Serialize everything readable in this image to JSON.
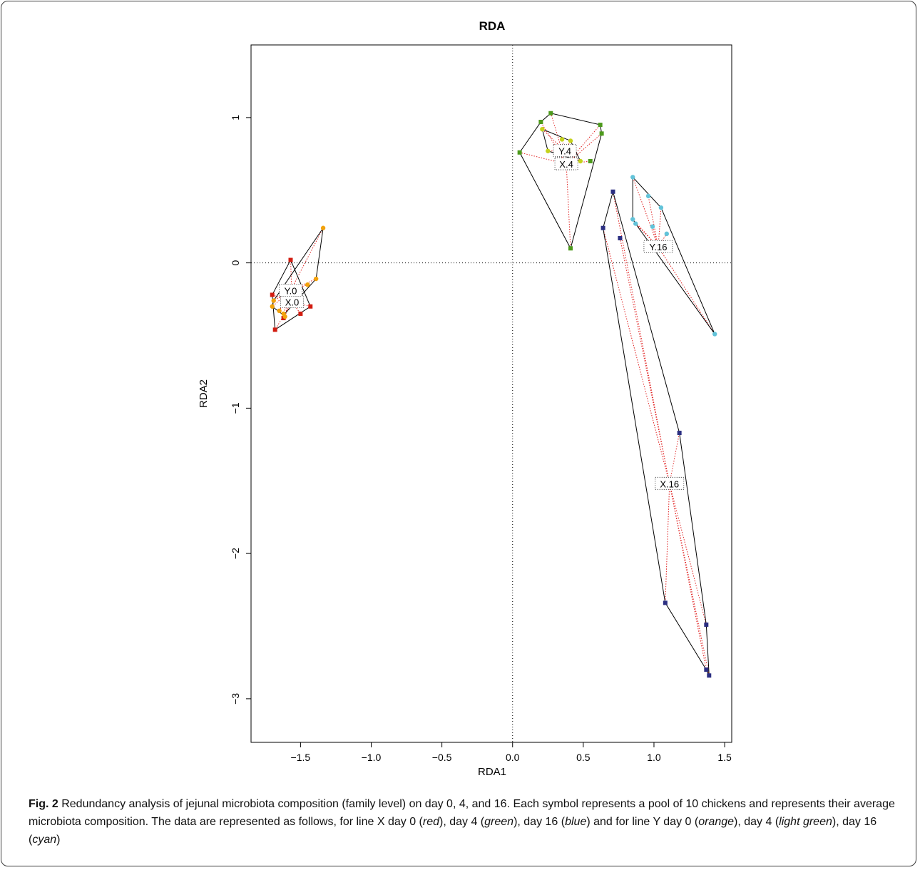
{
  "chart_data": {
    "type": "scatter",
    "title": "RDA",
    "xlabel": "RDA1",
    "ylabel": "RDA2",
    "xlim": [
      -1.85,
      1.55
    ],
    "ylim": [
      -3.3,
      1.5
    ],
    "xticks": [
      -1.5,
      -1.0,
      -0.5,
      0.0,
      0.5,
      1.0,
      1.5
    ],
    "xtick_labels": [
      "−1.5",
      "−1.0",
      "−0.5",
      "0.0",
      "0.5",
      "1.0",
      "1.5"
    ],
    "yticks": [
      -3,
      -2,
      -1,
      0,
      1
    ],
    "ytick_labels": [
      "−3",
      "−2",
      "−1",
      "0",
      "1"
    ],
    "reference_lines": {
      "x": 0,
      "y": 0
    },
    "groups": [
      {
        "label": "X.0",
        "color": "#d21c10",
        "marker": "square",
        "centroid": [
          -1.56,
          -0.27
        ],
        "points": [
          [
            -1.57,
            0.02
          ],
          [
            -1.7,
            -0.22
          ],
          [
            -1.68,
            -0.46
          ],
          [
            -1.62,
            -0.38
          ],
          [
            -1.5,
            -0.35
          ],
          [
            -1.43,
            -0.3
          ]
        ],
        "hull": [
          [
            -1.57,
            0.02
          ],
          [
            -1.7,
            -0.22
          ],
          [
            -1.68,
            -0.46
          ],
          [
            -1.43,
            -0.3
          ]
        ]
      },
      {
        "label": "Y.0",
        "color": "#f2a20c",
        "marker": "circle",
        "centroid": [
          -1.57,
          -0.19
        ],
        "points": [
          [
            -1.34,
            0.24
          ],
          [
            -1.39,
            -0.11
          ],
          [
            -1.45,
            -0.15
          ],
          [
            -1.7,
            -0.3
          ],
          [
            -1.69,
            -0.26
          ],
          [
            -1.65,
            -0.33
          ],
          [
            -1.62,
            -0.35
          ],
          [
            -1.61,
            -0.37
          ]
        ],
        "hull": [
          [
            -1.34,
            0.24
          ],
          [
            -1.69,
            -0.26
          ],
          [
            -1.7,
            -0.3
          ],
          [
            -1.62,
            -0.36
          ],
          [
            -1.39,
            -0.11
          ]
        ]
      },
      {
        "label": "X.4",
        "color": "#4d9a1c",
        "marker": "square",
        "centroid": [
          0.38,
          0.68
        ],
        "points": [
          [
            0.05,
            0.76
          ],
          [
            0.2,
            0.97
          ],
          [
            0.27,
            1.03
          ],
          [
            0.62,
            0.95
          ],
          [
            0.63,
            0.89
          ],
          [
            0.55,
            0.7
          ],
          [
            0.41,
            0.1
          ]
        ],
        "hull": [
          [
            0.05,
            0.76
          ],
          [
            0.2,
            0.97
          ],
          [
            0.27,
            1.03
          ],
          [
            0.62,
            0.95
          ],
          [
            0.63,
            0.89
          ],
          [
            0.41,
            0.1
          ]
        ]
      },
      {
        "label": "Y.4",
        "color": "#c5d21c",
        "marker": "circle",
        "centroid": [
          0.37,
          0.77
        ],
        "points": [
          [
            0.21,
            0.92
          ],
          [
            0.25,
            0.77
          ],
          [
            0.35,
            0.85
          ],
          [
            0.41,
            0.84
          ],
          [
            0.48,
            0.7
          ]
        ],
        "hull": [
          [
            0.21,
            0.92
          ],
          [
            0.41,
            0.84
          ],
          [
            0.48,
            0.7
          ],
          [
            0.25,
            0.77
          ]
        ]
      },
      {
        "label": "X.16",
        "color": "#2c2f82",
        "marker": "square",
        "centroid": [
          1.11,
          -1.52
        ],
        "points": [
          [
            0.64,
            0.24
          ],
          [
            0.71,
            0.49
          ],
          [
            0.76,
            0.17
          ],
          [
            1.18,
            -1.17
          ],
          [
            1.08,
            -2.34
          ],
          [
            1.37,
            -2.49
          ],
          [
            1.37,
            -2.8
          ],
          [
            1.39,
            -2.84
          ]
        ],
        "hull": [
          [
            0.64,
            0.24
          ],
          [
            0.71,
            0.49
          ],
          [
            1.18,
            -1.17
          ],
          [
            1.37,
            -2.49
          ],
          [
            1.39,
            -2.84
          ],
          [
            1.37,
            -2.8
          ],
          [
            1.08,
            -2.34
          ]
        ]
      },
      {
        "label": "Y.16",
        "color": "#62c3d9",
        "marker": "circle",
        "centroid": [
          1.03,
          0.11
        ],
        "points": [
          [
            0.85,
            0.59
          ],
          [
            0.96,
            0.46
          ],
          [
            1.05,
            0.38
          ],
          [
            0.85,
            0.3
          ],
          [
            0.87,
            0.27
          ],
          [
            0.99,
            0.25
          ],
          [
            1.09,
            0.2
          ],
          [
            1.43,
            -0.49
          ]
        ],
        "hull": [
          [
            0.85,
            0.59
          ],
          [
            1.05,
            0.38
          ],
          [
            1.43,
            -0.49
          ],
          [
            0.87,
            0.27
          ],
          [
            0.85,
            0.3
          ]
        ]
      }
    ]
  },
  "caption": {
    "label": "Fig. 2",
    "text_1": " Redundancy analysis of jejunal microbiota composition (family level) on day 0, 4, and 16. Each symbol represents a pool of 10 chickens and represents their average microbiota composition. The data are represented as follows, for line X day 0 (",
    "red": "red",
    "text_2": "), day 4 (",
    "green": "green",
    "text_3": "), day 16 (",
    "blue": "blue",
    "text_4": ") and for line Y day 0 (",
    "orange": "orange",
    "text_5": "), day 4 (",
    "light_green": "light green",
    "text_6": "), day 16 (",
    "cyan": "cyan",
    "text_7": ")"
  }
}
